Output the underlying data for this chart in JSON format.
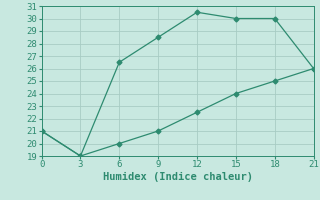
{
  "line1_x": [
    0,
    3,
    6,
    9,
    12,
    15,
    18,
    21
  ],
  "line1_y": [
    21,
    19,
    26.5,
    28.5,
    30.5,
    30,
    30,
    26
  ],
  "line2_x": [
    0,
    3,
    6,
    9,
    12,
    15,
    18,
    21
  ],
  "line2_y": [
    21,
    19,
    20,
    21,
    22.5,
    24,
    25,
    26
  ],
  "line_color": "#2e8b70",
  "bg_color": "#c8e8e0",
  "grid_color": "#a8ccc4",
  "xlabel": "Humidex (Indice chaleur)",
  "xlim": [
    0,
    21
  ],
  "ylim": [
    19,
    31
  ],
  "xticks": [
    0,
    3,
    6,
    9,
    12,
    15,
    18,
    21
  ],
  "yticks": [
    19,
    20,
    21,
    22,
    23,
    24,
    25,
    26,
    27,
    28,
    29,
    30,
    31
  ],
  "xlabel_fontsize": 7.5,
  "tick_fontsize": 6.5
}
